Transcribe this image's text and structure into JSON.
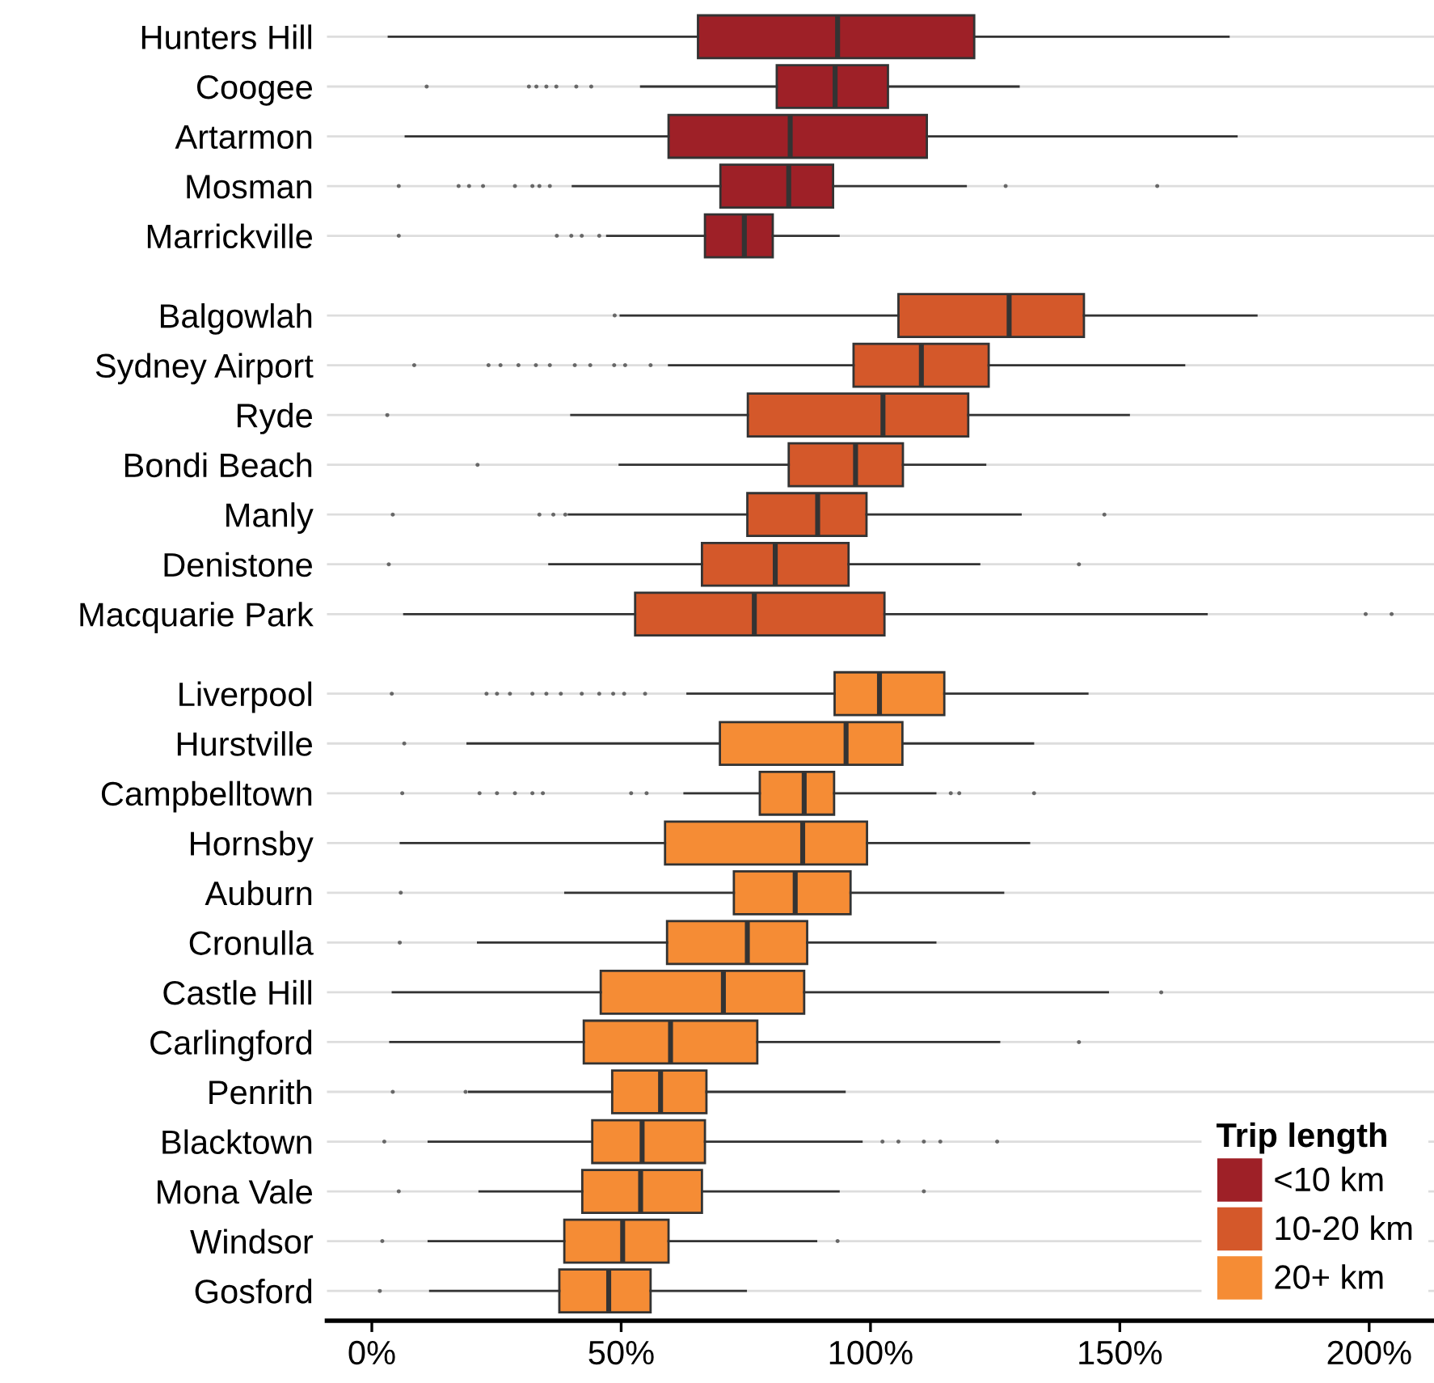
{
  "chart_data": {
    "type": "box",
    "orientation": "horizontal",
    "legend_title": "Trip length",
    "legend": "bottom right",
    "grid": "y",
    "categories": [
      "Hunters Hill",
      "Coogee",
      "Artarmon",
      "Mosman",
      "Marrickville",
      "Balgowlah",
      "Sydney Airport",
      "Ryde",
      "Bondi Beach",
      "Manly",
      "Denistone",
      "Macquarie Park",
      "Liverpool",
      "Hurstville",
      "Campbelltown",
      "Hornsby",
      "Auburn",
      "Cronulla",
      "Castle Hill",
      "Carlingford",
      "Penrith",
      "Blacktown",
      "Mona Vale",
      "Windsor",
      "Gosford"
    ],
    "xlim": [
      -9,
      213
    ],
    "xticks": [
      {
        "value": 0,
        "label": "0%"
      },
      {
        "value": 50,
        "label": "50%"
      },
      {
        "value": 100,
        "label": "100%"
      },
      {
        "value": 150,
        "label": "150%"
      },
      {
        "value": 200,
        "label": "200%"
      }
    ],
    "series": [
      {
        "name": "<10 km",
        "color": "#9e2027",
        "boxes": [
          {
            "low": 3.4,
            "q1": 65.4,
            "median": 93.4,
            "q3": 120.8,
            "high": 171.8
          },
          {
            "low": 54,
            "q1": 81.2,
            "median": 92.9,
            "q3": 103.5,
            "high": 129.7,
            "outliers": [
              11,
              31.5,
              33,
              35,
              37,
              41,
              44
            ]
          },
          {
            "low": 6.8,
            "q1": 59.5,
            "median": 83.9,
            "q3": 111.3,
            "high": 173.4
          },
          {
            "low": 40.3,
            "q1": 69.9,
            "median": 83.6,
            "q3": 92.5,
            "high": 119.1,
            "outliers": [
              5.4,
              17.4,
              19.5,
              22.3,
              28.7,
              32.2,
              33.6,
              35.7,
              127.1,
              157.5
            ]
          },
          {
            "low": 47.2,
            "q1": 66.8,
            "median": 74.7,
            "q3": 80.4,
            "high": 93.6,
            "outliers": [
              5.4,
              37.1,
              40,
              42.1,
              45.6
            ]
          },
          null,
          null,
          null,
          null,
          null,
          null,
          null,
          null,
          null,
          null,
          null,
          null,
          null,
          null,
          null,
          null,
          null,
          null,
          null,
          null
        ]
      },
      {
        "name": "10-20 km",
        "color": "#d4582a",
        "boxes": [
          null,
          null,
          null,
          null,
          null,
          {
            "low": 49.9,
            "q1": 105.6,
            "median": 127.8,
            "q3": 142.8,
            "high": 177.4,
            "outliers": [
              48.7
            ]
          },
          {
            "low": 59.6,
            "q1": 96.6,
            "median": 110.2,
            "q3": 123.7,
            "high": 162.9,
            "outliers": [
              8.5,
              23.4,
              25.8,
              29.4,
              32.9,
              35.7,
              40.7,
              43.8,
              48.6,
              50.8,
              55.9
            ]
          },
          {
            "low": 40,
            "q1": 75.4,
            "median": 102.5,
            "q3": 119.6,
            "high": 151.8,
            "outliers": [
              3.1
            ]
          },
          {
            "low": 49.7,
            "q1": 83.6,
            "median": 97,
            "q3": 106.5,
            "high": 123,
            "outliers": [
              21.2
            ]
          },
          {
            "low": 39.5,
            "q1": 75.3,
            "median": 89.4,
            "q3": 99.2,
            "high": 130.1,
            "outliers": [
              4.2,
              33.6,
              36.4,
              38.8,
              146.9
            ]
          },
          {
            "low": 35.6,
            "q1": 66.2,
            "median": 80.9,
            "q3": 95.6,
            "high": 121.8,
            "outliers": [
              3.4,
              141.8
            ]
          },
          {
            "low": 6.5,
            "q1": 52.8,
            "median": 76.7,
            "q3": 102.8,
            "high": 167.4,
            "outliers": [
              199.3,
              204.5
            ]
          },
          null,
          null,
          null,
          null,
          null,
          null,
          null,
          null,
          null,
          null,
          null,
          null,
          null
        ]
      },
      {
        "name": "20+ km",
        "color": "#f58c35",
        "boxes": [
          null,
          null,
          null,
          null,
          null,
          null,
          null,
          null,
          null,
          null,
          null,
          null,
          {
            "low": 63.3,
            "q1": 92.8,
            "median": 101.8,
            "q3": 114.8,
            "high": 143.5,
            "outliers": [
              4,
              23,
              25.1,
              27.7,
              32.2,
              35,
              37.9,
              42.1,
              45.6,
              48.4,
              50.6,
              54.8
            ]
          },
          {
            "low": 19.2,
            "q1": 69.8,
            "median": 95.1,
            "q3": 106.4,
            "high": 132.6,
            "outliers": [
              6.5
            ]
          },
          {
            "low": 62.7,
            "q1": 77.8,
            "median": 86.7,
            "q3": 92.7,
            "high": 113,
            "outliers": [
              6.1,
              21.6,
              25.1,
              28.7,
              32.2,
              34.3,
              52,
              55.1,
              116.1,
              117.8,
              132.8
            ]
          },
          {
            "low": 5.8,
            "q1": 58.8,
            "median": 86.4,
            "q3": 99.3,
            "high": 131.8
          },
          {
            "low": 38.8,
            "q1": 72.6,
            "median": 84.9,
            "q3": 96,
            "high": 126.6,
            "outliers": [
              5.8
            ]
          },
          {
            "low": 21.3,
            "q1": 59.2,
            "median": 75.3,
            "q3": 87.3,
            "high": 113,
            "outliers": [
              5.6
            ]
          },
          {
            "low": 4.2,
            "q1": 45.9,
            "median": 70.5,
            "q3": 86.7,
            "high": 147.6,
            "outliers": [
              158.3
            ]
          },
          {
            "low": 3.7,
            "q1": 42.5,
            "median": 59.9,
            "q3": 77.3,
            "high": 125.8,
            "outliers": [
              141.8
            ]
          },
          {
            "low": 19.5,
            "q1": 48.2,
            "median": 57.9,
            "q3": 67.1,
            "high": 94.8,
            "outliers": [
              4.2,
              18.8
            ]
          },
          {
            "low": 11.4,
            "q1": 44.2,
            "median": 54.2,
            "q3": 66.8,
            "high": 98.2,
            "outliers": [
              2.5,
              102.4,
              105.6,
              110.7,
              114,
              125.4
            ]
          },
          {
            "low": 21.6,
            "q1": 42.2,
            "median": 53.9,
            "q3": 66.2,
            "high": 93.6,
            "outliers": [
              5.4,
              110.7
            ]
          },
          {
            "low": 11.4,
            "q1": 38.6,
            "median": 50.3,
            "q3": 59.5,
            "high": 89.1,
            "outliers": [
              2.1,
              93.4
            ]
          },
          {
            "low": 11.7,
            "q1": 37.6,
            "median": 47.5,
            "q3": 55.9,
            "high": 75,
            "outliers": [
              1.6
            ]
          }
        ]
      }
    ]
  }
}
